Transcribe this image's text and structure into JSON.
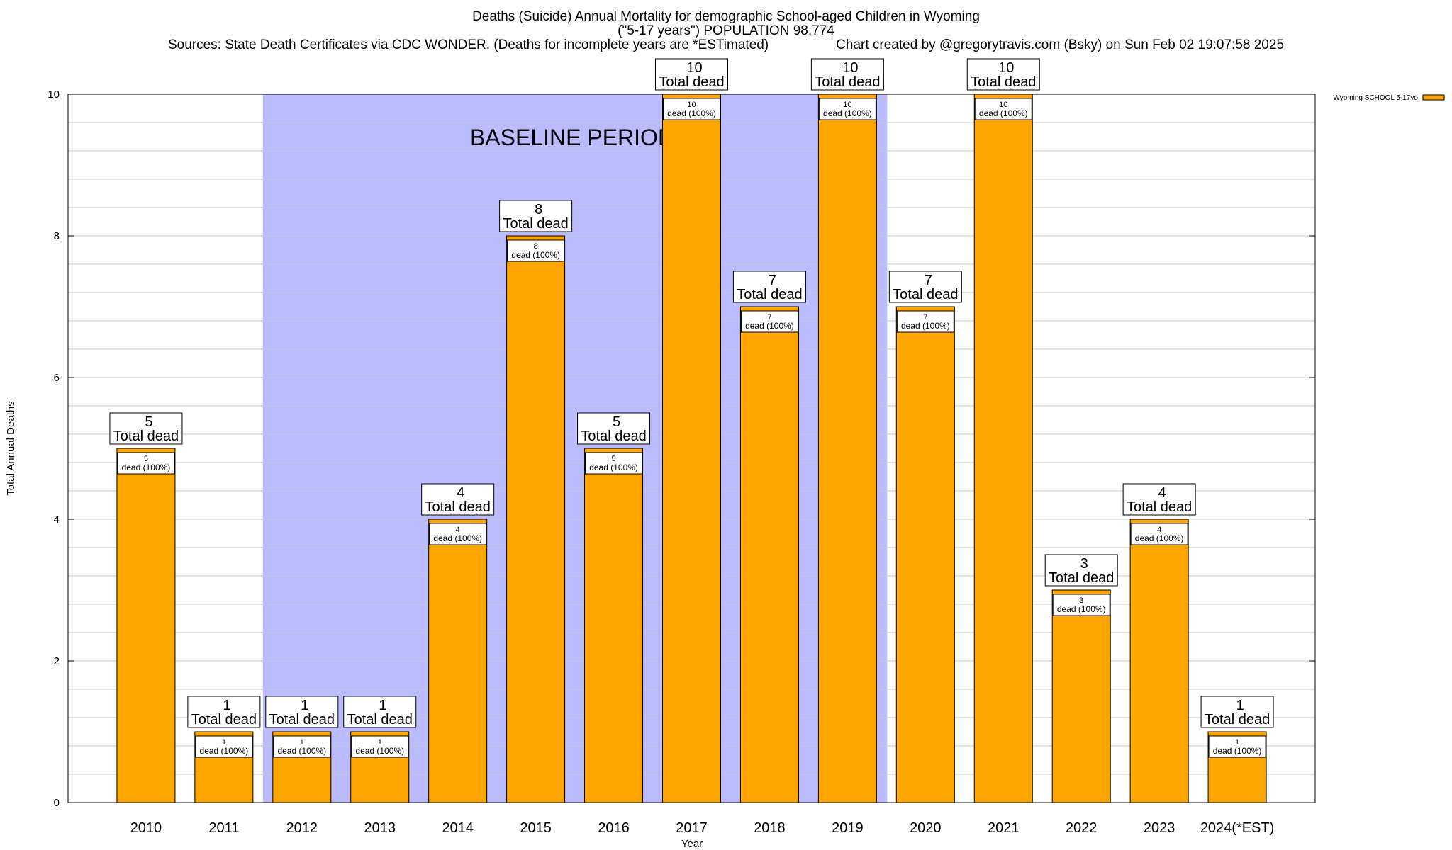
{
  "header": {
    "title_line1": "Deaths (Suicide) Annual Mortality for demographic School-aged Children in Wyoming",
    "title_line2": "(\"5-17 years\") POPULATION 98,774",
    "sources": "Sources: State Death Certificates via CDC WONDER. (Deaths for incomplete years are *ESTimated)",
    "credit": "Chart created by @gregorytravis.com (Bsky) on Sun Feb 02 19:07:58 2025"
  },
  "chart_data": {
    "type": "bar",
    "categories": [
      "2010",
      "2011",
      "2012",
      "2013",
      "2014",
      "2015",
      "2016",
      "2017",
      "2018",
      "2019",
      "2020",
      "2021",
      "2022",
      "2023",
      "2024(*EST)"
    ],
    "series": [
      {
        "name": "Wyoming SCHOOL 5-17yo",
        "values": [
          5,
          1,
          1,
          1,
          4,
          8,
          5,
          10,
          7,
          10,
          7,
          10,
          3,
          4,
          1
        ]
      }
    ],
    "xlabel": "Year",
    "ylabel": "Total Annual Deaths",
    "ylim": [
      0,
      10
    ],
    "yticks": [
      0,
      2,
      4,
      6,
      8,
      10
    ],
    "bar_label_suffix": "Total dead",
    "inner_label_suffix": "dead (100%)",
    "shaded_region": {
      "label": "BASELINE PERIOD",
      "from": "2012",
      "to": "2019"
    },
    "legend_position": "top-right",
    "grid": true,
    "colors": {
      "bar": "#FFA500",
      "baseline": "#BBBBFF"
    }
  }
}
